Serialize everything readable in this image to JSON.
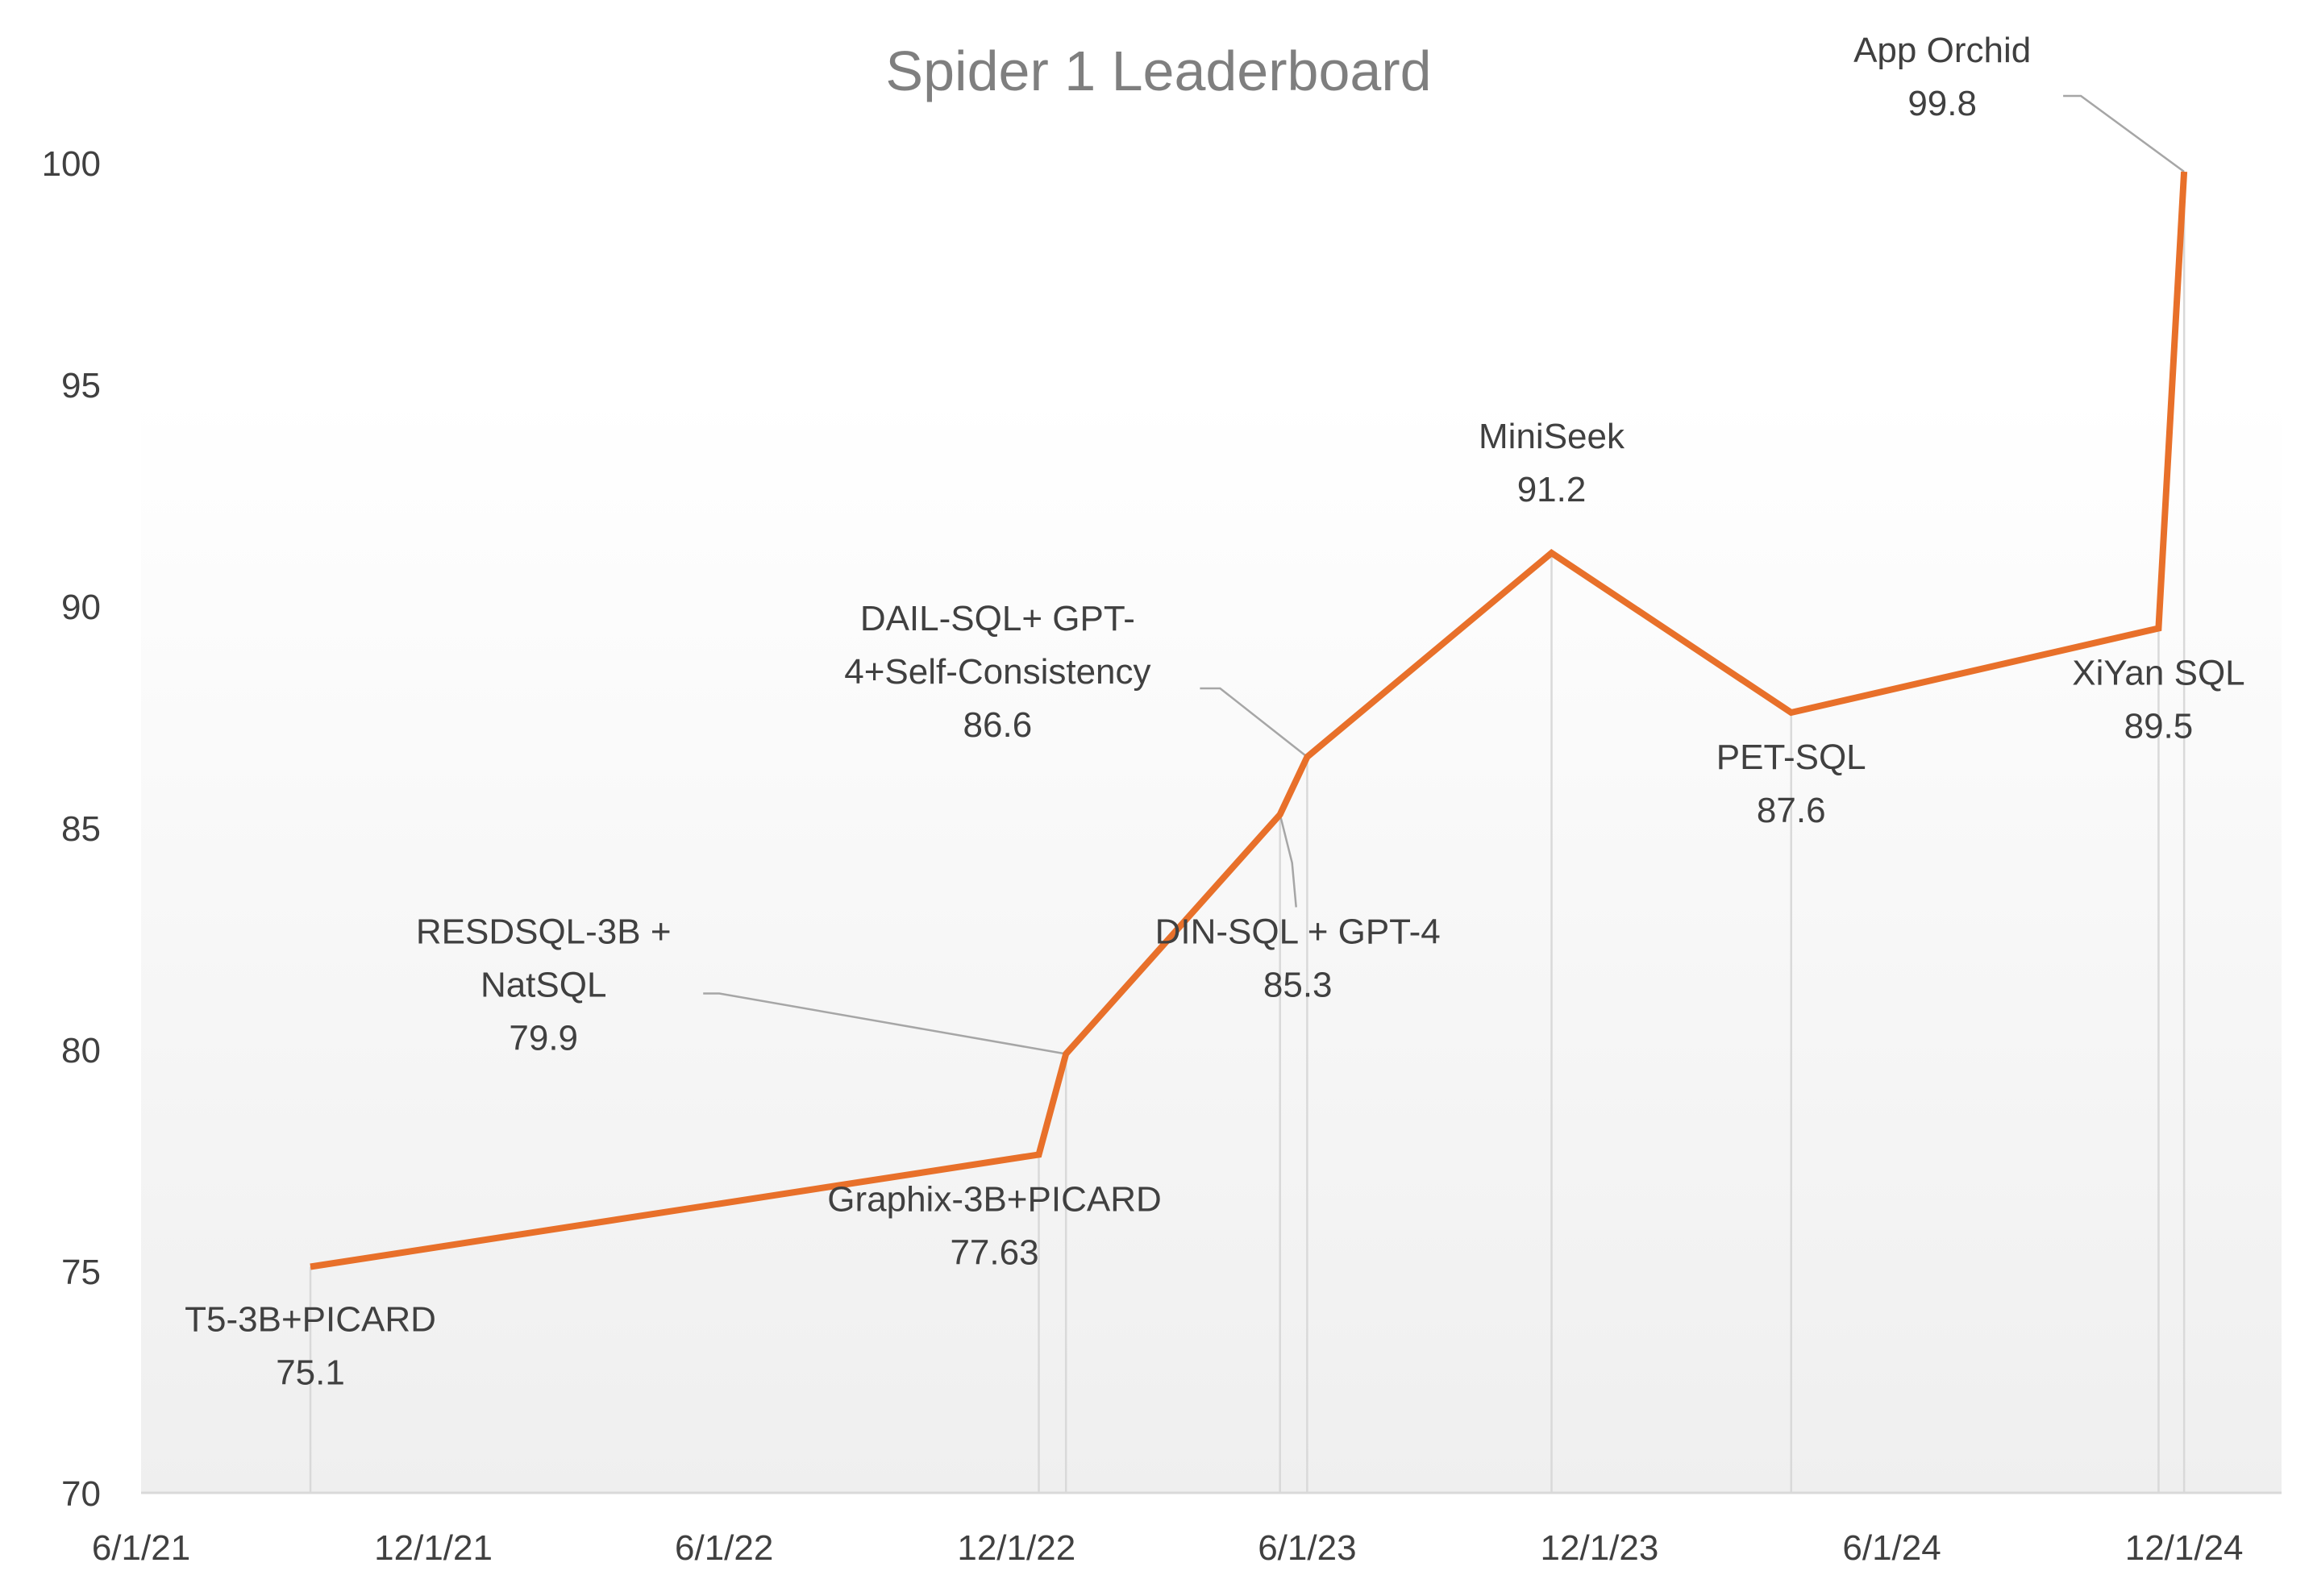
{
  "chart_data": {
    "type": "line",
    "title": "Spider 1 Leaderboard",
    "xlabel": "",
    "ylabel": "",
    "ylim": [
      70,
      100
    ],
    "yticks": [
      "70",
      "75",
      "80",
      "85",
      "90",
      "95",
      "100"
    ],
    "xlim": [
      "2021-06-01",
      "2025-01-31"
    ],
    "xticks": [
      {
        "date": "2021-06-01",
        "label": "6/1/21"
      },
      {
        "date": "2021-12-01",
        "label": "12/1/21"
      },
      {
        "date": "2022-06-01",
        "label": "6/1/22"
      },
      {
        "date": "2022-12-01",
        "label": "12/1/22"
      },
      {
        "date": "2023-06-01",
        "label": "6/1/23"
      },
      {
        "date": "2023-12-01",
        "label": "12/1/23"
      },
      {
        "date": "2024-06-01",
        "label": "6/1/24"
      },
      {
        "date": "2024-12-01",
        "label": "12/1/24"
      }
    ],
    "grid": "vertical drop lines at each data point",
    "colors": {
      "line": "#E8702A",
      "dropline": "#d9d9d9",
      "leader": "#a6a6a6"
    },
    "series": [
      {
        "points": [
          {
            "x": "2021-09-15",
            "y": 75.1,
            "label": "T5-3B+PICARD",
            "value_label": "75.1"
          },
          {
            "x": "2022-12-15",
            "y": 77.63,
            "label": "Graphix-3B+PICARD",
            "value_label": "77.63"
          },
          {
            "x": "2023-01-01",
            "y": 79.9,
            "label": "RESDSQL-3B + NatSQL",
            "value_label": "79.9"
          },
          {
            "x": "2023-05-15",
            "y": 85.3,
            "label": "DIN-SQL + GPT-4",
            "value_label": "85.3"
          },
          {
            "x": "2023-06-01",
            "y": 86.6,
            "label": "DAIL-SQL+ GPT-4+Self-Consistency",
            "value_label": "86.6"
          },
          {
            "x": "2023-11-01",
            "y": 91.2,
            "label": "MiniSeek",
            "value_label": "91.2"
          },
          {
            "x": "2024-03-30",
            "y": 87.6,
            "label": "PET-SQL",
            "value_label": "87.6"
          },
          {
            "x": "2024-11-15",
            "y": 89.5,
            "label": "XiYan SQL",
            "value_label": "89.5"
          },
          {
            "x": "2024-12-01",
            "y": 99.8,
            "label": "App Orchid",
            "value_label": "99.8"
          }
        ]
      }
    ]
  }
}
